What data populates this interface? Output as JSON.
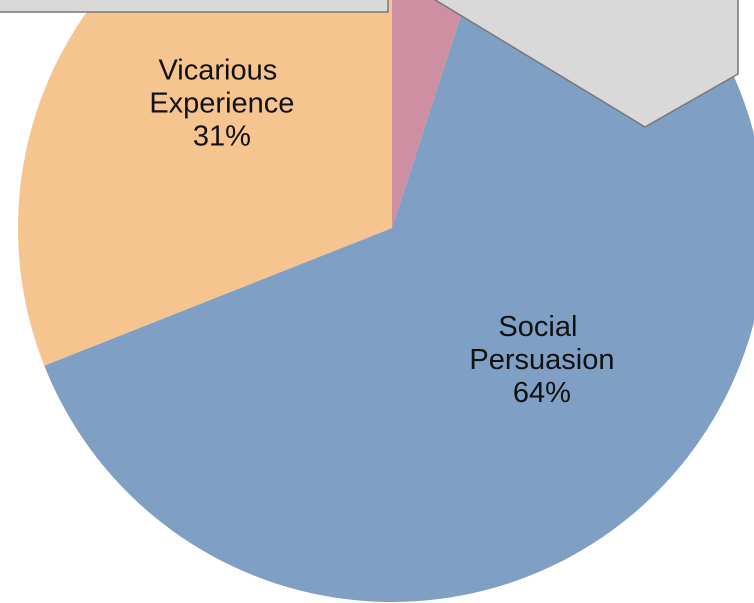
{
  "chart_data": {
    "type": "pie",
    "categories": [
      null,
      "Social Persuasion",
      "Vicarious Experience"
    ],
    "values": [
      5,
      64,
      31
    ],
    "value_labels": [
      null,
      "64%",
      "31%"
    ],
    "colors": [
      "#cf8fa3",
      "#7f9fc4",
      "#f5c48f"
    ]
  }
}
